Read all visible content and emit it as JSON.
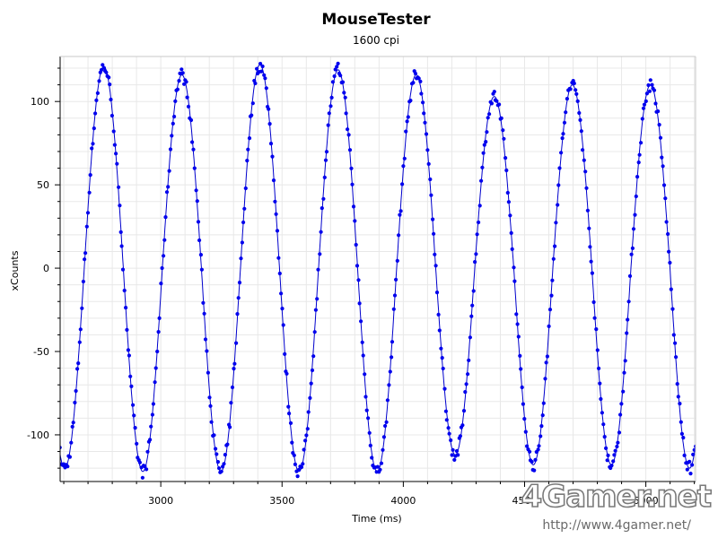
{
  "chart_data": {
    "type": "scatter",
    "title": "MouseTester",
    "subtitle": "1600 cpi",
    "xlabel": "Time (ms)",
    "ylabel": "xCounts",
    "xlim": [
      2585,
      5205
    ],
    "ylim": [
      -128,
      127
    ],
    "x_ticks": [
      3000,
      3500,
      4000,
      4500,
      5000
    ],
    "y_ticks": [
      100,
      50,
      0,
      -50,
      -100
    ],
    "grid": true,
    "marker_color": "#0000ee",
    "line_color": "#0000cc",
    "cycle_period_ms": 322,
    "phase_ref_ms": 2765,
    "peaks": [
      {
        "x": 2765,
        "y": 121
      },
      {
        "x": 3087,
        "y": 116
      },
      {
        "x": 3409,
        "y": 122
      },
      {
        "x": 3731,
        "y": 119
      },
      {
        "x": 4053,
        "y": 116
      },
      {
        "x": 4375,
        "y": 103
      },
      {
        "x": 4697,
        "y": 110
      },
      {
        "x": 5019,
        "y": 110
      }
    ],
    "troughs": [
      {
        "x": 2604,
        "y": -120
      },
      {
        "x": 2926,
        "y": -122
      },
      {
        "x": 3248,
        "y": -122
      },
      {
        "x": 3570,
        "y": -122
      },
      {
        "x": 3892,
        "y": -122
      },
      {
        "x": 4214,
        "y": -112
      },
      {
        "x": 4536,
        "y": -118
      },
      {
        "x": 4858,
        "y": -118
      },
      {
        "x": 5180,
        "y": -120
      }
    ],
    "sample_interval_ms": 5
  },
  "watermark": {
    "logo_text": "4Gamer.net",
    "url": "http://www.4gamer.net/"
  }
}
